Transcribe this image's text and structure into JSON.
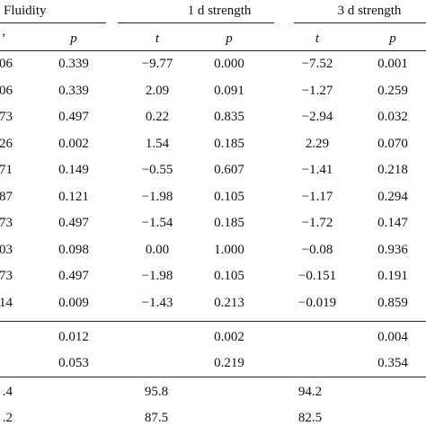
{
  "groups": [
    {
      "label": "Fluidity"
    },
    {
      "label": "1 d strength"
    },
    {
      "label": "3 d strength"
    }
  ],
  "subheaders": [
    "t",
    "p",
    "t",
    "p",
    "t",
    "p"
  ],
  "rows": [
    {
      "f_t": "06",
      "f_p": "0.339",
      "d1_t": "−9.77",
      "d1_p": "0.000",
      "d3_t": "−7.52",
      "d3_p": "0.001"
    },
    {
      "f_t": "06",
      "f_p": "0.339",
      "d1_t": "2.09",
      "d1_p": "0.091",
      "d3_t": "−1.27",
      "d3_p": "0.259"
    },
    {
      "f_t": "73",
      "f_p": "0.497",
      "d1_t": "0.22",
      "d1_p": "0.835",
      "d3_t": "−2.94",
      "d3_p": "0.032"
    },
    {
      "f_t": "26",
      "f_p": "0.002",
      "d1_t": "1.54",
      "d1_p": "0.185",
      "d3_t": "2.29",
      "d3_p": "0.070"
    },
    {
      "f_t": "71",
      "f_p": "0.149",
      "d1_t": "−0.55",
      "d1_p": "0.607",
      "d3_t": "−1.41",
      "d3_p": "0.218"
    },
    {
      "f_t": "87",
      "f_p": "0.121",
      "d1_t": "−1.98",
      "d1_p": "0.105",
      "d3_t": "−1.17",
      "d3_p": "0.294"
    },
    {
      "f_t": "73",
      "f_p": "0.497",
      "d1_t": "−1.54",
      "d1_p": "0.185",
      "d3_t": "−1.72",
      "d3_p": "0.147"
    },
    {
      "f_t": "03",
      "f_p": "0.098",
      "d1_t": "0.00",
      "d1_p": "1.000",
      "d3_t": "−0.08",
      "d3_p": "0.936"
    },
    {
      "f_t": "73",
      "f_p": "0.497",
      "d1_t": "−1.98",
      "d1_p": "0.105",
      "d3_t": "−0.151",
      "d3_p": "0.191"
    },
    {
      "f_t": "14",
      "f_p": "0.009",
      "d1_t": "−1.43",
      "d1_p": "0.213",
      "d3_t": "−0.019",
      "d3_p": "0.859"
    }
  ],
  "summary": [
    {
      "f_p": "0.012",
      "d1_p": "0.002",
      "d3_p": "0.004"
    },
    {
      "f_p": "0.053",
      "d1_p": "0.219",
      "d3_p": "0.354"
    }
  ],
  "footer": [
    {
      "f": ".4",
      "d1": "95.8",
      "d3": "94.2"
    },
    {
      "f": ".2",
      "d1": "87.5",
      "d3": "82.5"
    }
  ]
}
